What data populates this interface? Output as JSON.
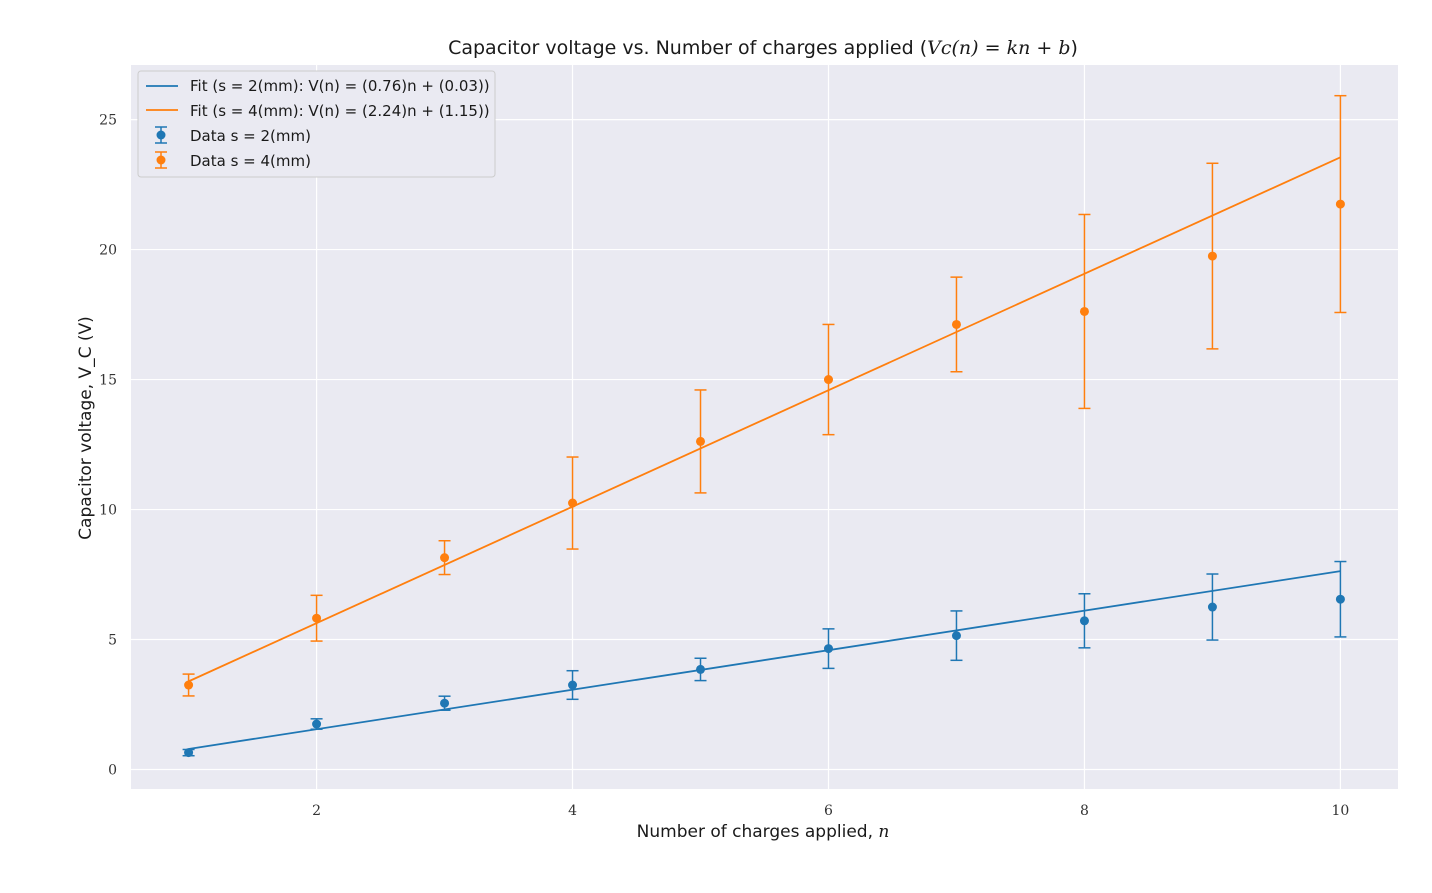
{
  "chart_data": {
    "type": "scatter",
    "title_prefix": "Capacitor voltage vs. Number of charges applied (",
    "title_math": "Vc(n) = kn + b",
    "title_suffix": ")",
    "xlabel_prefix": "Number of charges applied, ",
    "xlabel_math": "n",
    "ylabel": "Capacitor voltage, V_C (V)",
    "xlim": [
      0.55,
      10.45
    ],
    "ylim": [
      -0.75,
      27.1
    ],
    "xticks": [
      2,
      4,
      6,
      8,
      10
    ],
    "yticks": [
      0,
      5,
      10,
      15,
      20,
      25
    ],
    "grid": true,
    "legend_position": "top-left",
    "background": "#eaeaf2",
    "series": [
      {
        "name": "Data s = 2(mm)",
        "color": "#1f77b4",
        "x": [
          1,
          2,
          3,
          4,
          5,
          6,
          7,
          8,
          9,
          10
        ],
        "y": [
          0.65,
          1.75,
          2.55,
          3.25,
          3.85,
          4.65,
          5.15,
          5.72,
          6.25,
          6.55
        ],
        "yerr": [
          0.12,
          0.2,
          0.27,
          0.55,
          0.43,
          0.76,
          0.95,
          1.04,
          1.27,
          1.45
        ],
        "fit": {
          "name": "Fit (s = 2(mm): V(n) = (0.76)n + (0.03))",
          "k": 0.76,
          "b": 0.03
        }
      },
      {
        "name": "Data s = 4(mm)",
        "color": "#ff7f0e",
        "x": [
          1,
          2,
          3,
          4,
          5,
          6,
          7,
          8,
          9,
          10
        ],
        "y": [
          3.25,
          5.82,
          8.15,
          10.25,
          12.62,
          15.0,
          17.12,
          17.62,
          19.75,
          21.75
        ],
        "yerr": [
          0.42,
          0.88,
          0.65,
          1.77,
          1.98,
          2.12,
          1.82,
          3.73,
          3.57,
          4.17
        ],
        "fit": {
          "name": "Fit (s = 4(mm): V(n) = (2.24)n + (1.15))",
          "k": 2.24,
          "b": 1.15
        }
      }
    ]
  }
}
